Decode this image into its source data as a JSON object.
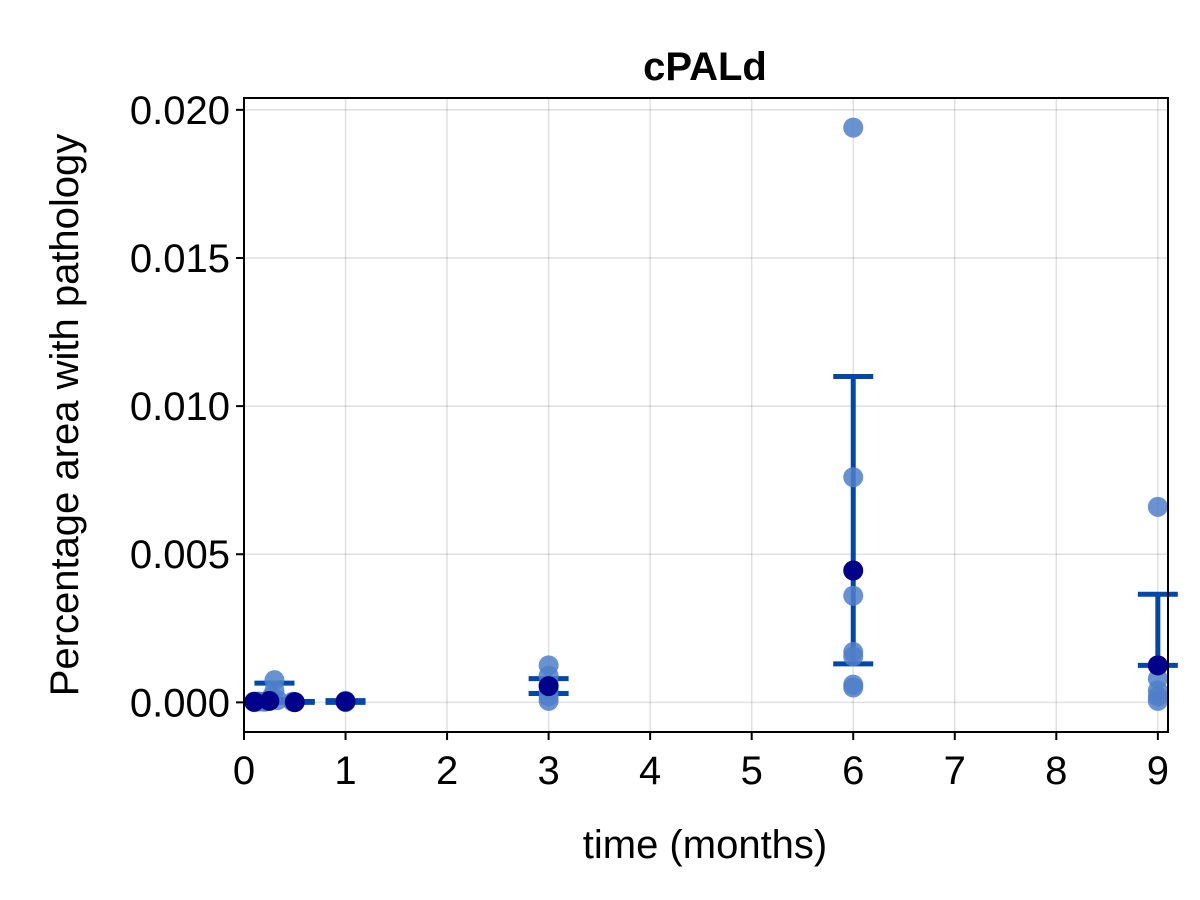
{
  "chart_data": {
    "type": "scatter",
    "title": "cPALd",
    "xlabel": "time (months)",
    "ylabel": "Percentage area with pathology",
    "xlim": [
      0,
      9.1
    ],
    "ylim": [
      -0.001,
      0.0204
    ],
    "xticks": [
      "0",
      "1",
      "2",
      "3",
      "4",
      "5",
      "6",
      "7",
      "8",
      "9"
    ],
    "yticks": [
      "0.000",
      "0.005",
      "0.010",
      "0.015",
      "0.020"
    ],
    "grid": true,
    "colors": {
      "points": "#4f7fc9",
      "mean": "#00008b",
      "errorbar": "#0047ab"
    },
    "points": [
      {
        "x": 0.1,
        "y": 1e-05
      },
      {
        "x": 0.12,
        "y": 2e-05
      },
      {
        "x": 0.15,
        "y": 3e-05
      },
      {
        "x": 0.2,
        "y": 2e-05
      },
      {
        "x": 0.22,
        "y": 4e-05
      },
      {
        "x": 0.25,
        "y": 6e-05
      },
      {
        "x": 0.27,
        "y": 0.00018
      },
      {
        "x": 0.3,
        "y": 0.00075
      },
      {
        "x": 0.3,
        "y": 0.0004
      },
      {
        "x": 0.33,
        "y": 8e-05
      },
      {
        "x": 0.48,
        "y": 2e-05
      },
      {
        "x": 0.5,
        "y": 1e-05
      },
      {
        "x": 1,
        "y": 5e-05
      },
      {
        "x": 1,
        "y": 1e-05
      },
      {
        "x": 3,
        "y": 0.00125
      },
      {
        "x": 3,
        "y": 0.0009
      },
      {
        "x": 3,
        "y": 0.0006
      },
      {
        "x": 3,
        "y": 0.0004
      },
      {
        "x": 3,
        "y": 0.0002
      },
      {
        "x": 3,
        "y": 5e-05
      },
      {
        "x": 6,
        "y": 0.0194
      },
      {
        "x": 6,
        "y": 0.0076
      },
      {
        "x": 6,
        "y": 0.0036
      },
      {
        "x": 6,
        "y": 0.0017
      },
      {
        "x": 6,
        "y": 0.00155
      },
      {
        "x": 6,
        "y": 0.0006
      },
      {
        "x": 6,
        "y": 0.0005
      },
      {
        "x": 9,
        "y": 0.0066
      },
      {
        "x": 9,
        "y": 0.00125
      },
      {
        "x": 9,
        "y": 0.0008
      },
      {
        "x": 9,
        "y": 0.0004
      },
      {
        "x": 9,
        "y": 0.0002
      },
      {
        "x": 9,
        "y": 5e-05
      }
    ],
    "means": [
      {
        "x": 0.1,
        "y": 2e-05
      },
      {
        "x": 0.25,
        "y": 5e-05
      },
      {
        "x": 0.5,
        "y": 1e-05
      },
      {
        "x": 1,
        "y": 3e-05
      },
      {
        "x": 3,
        "y": 0.00055
      },
      {
        "x": 6,
        "y": 0.00445
      },
      {
        "x": 9,
        "y": 0.00125
      }
    ],
    "errorbars": [
      {
        "x": 0.3,
        "low": 0.0001,
        "high": 0.00065
      },
      {
        "x": 0.5,
        "low": 0.0,
        "high": 3e-05
      },
      {
        "x": 1,
        "low": 0.0,
        "high": 6e-05
      },
      {
        "x": 3,
        "low": 0.0003,
        "high": 0.0008
      },
      {
        "x": 6,
        "low": 0.0013,
        "high": 0.011
      },
      {
        "x": 9,
        "low": 0.00125,
        "high": 0.00365
      }
    ]
  }
}
